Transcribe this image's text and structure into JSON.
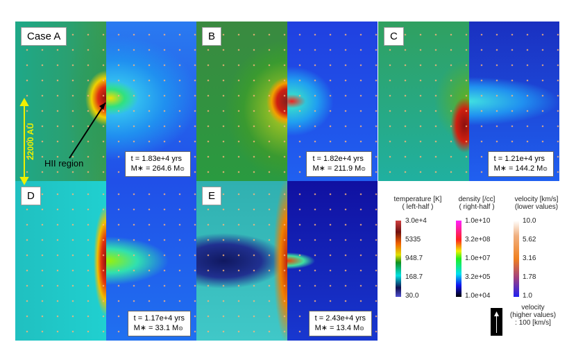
{
  "panels": [
    {
      "label": "Case A",
      "t": "t = 1.83e+4 yrs",
      "m": "M∗ = 264.6 M",
      "sun": "⊙"
    },
    {
      "label": "B",
      "t": "t = 1.82e+4 yrs",
      "m": "M∗ = 211.9 M",
      "sun": "⊙"
    },
    {
      "label": "C",
      "t": "t = 1.21e+4 yrs",
      "m": "M∗ = 144.2 M",
      "sun": "⊙"
    },
    {
      "label": "D",
      "t": "t = 1.17e+4 yrs",
      "m": "M∗ = 33.1 M",
      "sun": "⊙"
    },
    {
      "label": "E",
      "t": "t = 2.43e+4 yrs",
      "m": "M∗ = 13.4 M",
      "sun": "⊙"
    }
  ],
  "annotations": {
    "scale": "22000 AU",
    "hii": "HII region"
  },
  "legend": {
    "temperature": {
      "title": "temperature [K]",
      "sub": "( left-half )",
      "ticks": [
        "3.0e+4",
        "5335",
        "948.7",
        "168.7",
        "30.0"
      ]
    },
    "density": {
      "title": "density [/cc]",
      "sub": "( right-half )",
      "ticks": [
        "1.0e+10",
        "3.2e+08",
        "1.0e+07",
        "3.2e+05",
        "1.0e+04"
      ]
    },
    "velocity_low": {
      "title": "velocity [km/s]",
      "sub": "(lower values)",
      "ticks": [
        "10.0",
        "5.62",
        "3.16",
        "1.78",
        "1.0"
      ]
    },
    "velocity_high": {
      "title": "velocity",
      "sub": "(higher values)",
      "unit": ": 100 [km/s]"
    }
  }
}
